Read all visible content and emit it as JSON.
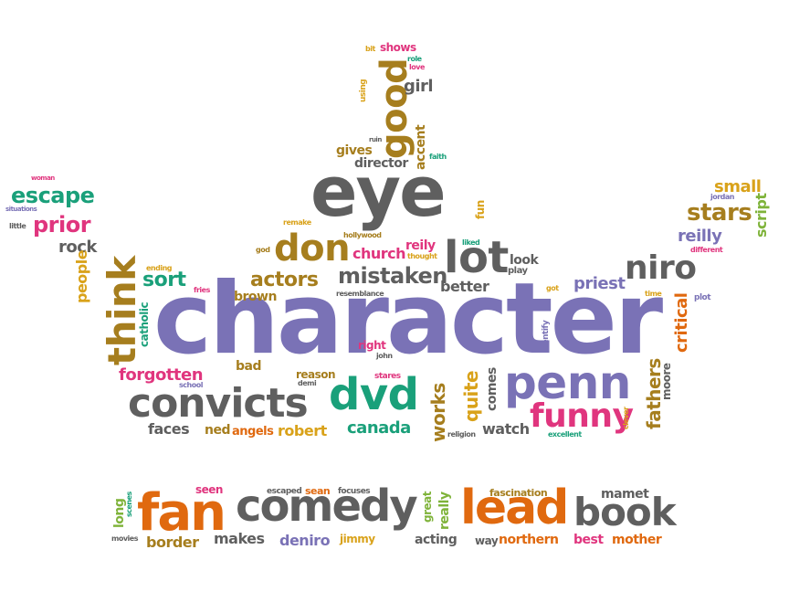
{
  "cloud": {
    "character": "character",
    "eye": "eye",
    "don": "don",
    "lot": "lot",
    "think": "think",
    "convicts": "convicts",
    "dvd": "dvd",
    "penn": "penn",
    "funny": "funny",
    "niro": "niro",
    "good": "good",
    "mistaken": "mistaken",
    "actors": "actors",
    "sort": "sort",
    "stars": "stars",
    "escape": "escape",
    "prior": "prior",
    "rock": "rock",
    "people": "people",
    "forgotten": "forgotten",
    "faces": "faces",
    "ned": "ned",
    "angels": "angels",
    "robert": "robert",
    "canada": "canada",
    "works": "works",
    "quite": "quite",
    "comes": "comes",
    "watch": "watch",
    "fathers": "fathers",
    "moore": "moore",
    "critical": "critical",
    "reilly": "reilly",
    "small": "small",
    "script": "script",
    "jordan": "jordan",
    "priest": "priest",
    "look": "look",
    "play": "play",
    "better": "better",
    "reily": "reily",
    "thought": "thought",
    "church": "church",
    "hollywood": "hollywood",
    "liked": "liked",
    "fun": "fun",
    "remake": "remake",
    "god": "god",
    "ending": "ending",
    "fries": "fries",
    "brown": "brown",
    "resemblance": "resemblance",
    "catholic": "catholic",
    "bad": "bad",
    "right": "right",
    "john": "john",
    "reason": "reason",
    "demi": "demi",
    "stares": "stares",
    "school": "school",
    "identify": "identify",
    "got": "got",
    "different": "different",
    "time": "time",
    "plot": "plot",
    "clever": "clever",
    "excellent": "excellent",
    "religion": "religion",
    "gives": "gives",
    "director": "director",
    "accent": "accent",
    "faith": "faith",
    "ruin": "ruin",
    "girl": "girl",
    "love": "love",
    "role": "role",
    "shows": "shows",
    "bit": "bit",
    "using": "using",
    "woman": "woman",
    "situations": "situations",
    "little": "little",
    "fan": "fan",
    "comedy": "comedy",
    "lead": "lead",
    "book": "book",
    "seen": "seen",
    "escaped": "escaped",
    "sean": "sean",
    "focuses": "focuses",
    "fascination": "fascination",
    "mamet": "mamet",
    "long": "long",
    "scenes": "scenes",
    "movies": "movies",
    "border": "border",
    "makes": "makes",
    "deniro": "deniro",
    "jimmy": "jimmy",
    "great": "great",
    "really": "really",
    "acting": "acting",
    "way": "way",
    "northern": "northern",
    "best": "best",
    "mother": "mother"
  }
}
